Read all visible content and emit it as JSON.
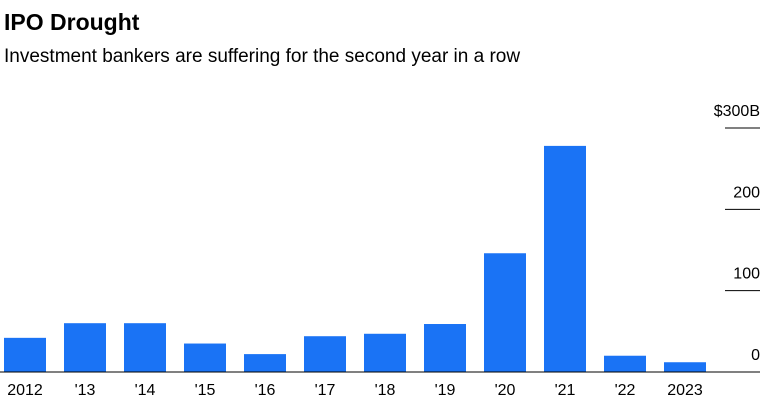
{
  "chart_data": {
    "type": "bar",
    "title": "IPO Drought",
    "subtitle": "Investment bankers are suffering for the second year in a row",
    "categories": [
      "2012",
      "'13",
      "'14",
      "'15",
      "'16",
      "'17",
      "'18",
      "'19",
      "'20",
      "'21",
      "'22",
      "2023"
    ],
    "values": [
      42,
      60,
      60,
      35,
      22,
      44,
      47,
      59,
      146,
      278,
      20,
      12
    ],
    "color": "#1a73f5",
    "ylim": [
      0,
      300
    ],
    "yticks": [
      0,
      100,
      200,
      {
        "value": 300,
        "label": "$300B"
      }
    ]
  }
}
